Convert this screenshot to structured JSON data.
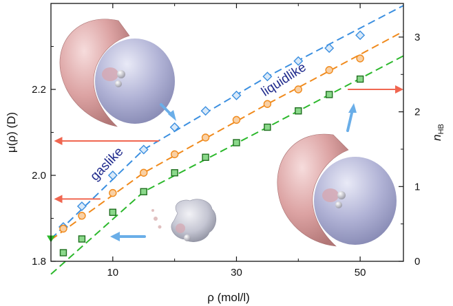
{
  "chart_data": {
    "type": "line",
    "xlabel": "ρ (mol/l)",
    "ylabel": "μ(ρ) (D)",
    "y2label_main": "n",
    "y2label_sub": "HB",
    "xlim": [
      0,
      57
    ],
    "ylim": [
      1.8,
      2.4
    ],
    "y2lim": [
      0,
      3.45
    ],
    "xticks": [
      10,
      30,
      50
    ],
    "xticks_minor": [
      20,
      40
    ],
    "yticks": [
      1.8,
      2.0,
      2.2
    ],
    "yticks_minor": [
      1.9,
      2.1,
      2.3
    ],
    "y2ticks": [
      0,
      1,
      2,
      3
    ],
    "series": [
      {
        "marker": "diamond",
        "color": "#3b8fe0",
        "x": [
          2,
          5,
          10,
          15,
          20,
          25,
          30,
          35,
          40,
          45,
          50
        ],
        "y": [
          1.88,
          1.928,
          2.0,
          2.06,
          2.112,
          2.15,
          2.186,
          2.23,
          2.266,
          2.296,
          2.326
        ]
      },
      {
        "marker": "circle",
        "color": "#f08a1c",
        "x": [
          2,
          5,
          10,
          15,
          20,
          25,
          30,
          35,
          40,
          45,
          50
        ],
        "y": [
          1.876,
          1.906,
          1.959,
          2.006,
          2.049,
          2.088,
          2.129,
          2.166,
          2.2,
          2.245,
          2.272
        ]
      },
      {
        "marker": "square",
        "color": "#2cb82c",
        "x": [
          2,
          5,
          10,
          15,
          20,
          25,
          30,
          35,
          40,
          45,
          50
        ],
        "y": [
          1.82,
          1.852,
          1.914,
          1.962,
          2.006,
          2.042,
          2.076,
          2.112,
          2.15,
          2.188,
          2.224
        ]
      }
    ],
    "fits": [
      {
        "color": "#3b8fe0",
        "points": [
          [
            0,
            1.852
          ],
          [
            15,
            2.06
          ],
          [
            35,
            2.23
          ],
          [
            57,
            2.395
          ]
        ]
      },
      {
        "color": "#f08a1c",
        "points": [
          [
            0,
            1.85
          ],
          [
            15,
            2.006
          ],
          [
            35,
            2.166
          ],
          [
            57,
            2.335
          ]
        ]
      },
      {
        "color": "#2cb82c",
        "points": [
          [
            0,
            1.77
          ],
          [
            15,
            1.962
          ],
          [
            35,
            2.112
          ],
          [
            57,
            2.278
          ]
        ]
      }
    ],
    "y_axis_marker": {
      "y": 1.852,
      "color": "#2cb82c"
    },
    "annotations": [
      {
        "text": "liquidlike",
        "x": 38,
        "y": 2.215,
        "rotate": -33
      },
      {
        "text": "gaslike",
        "x": 9.5,
        "y": 2.02,
        "rotate": -46
      }
    ],
    "arrows": {
      "red_left": [
        {
          "x_from": 17.5,
          "x_to": 0.5,
          "y": 2.08
        },
        {
          "x_from": 8,
          "x_to": 0.5,
          "y": 1.945
        }
      ],
      "red_right": [
        {
          "x_from": 48,
          "x_to": 57,
          "y": 2.2
        }
      ]
    }
  }
}
